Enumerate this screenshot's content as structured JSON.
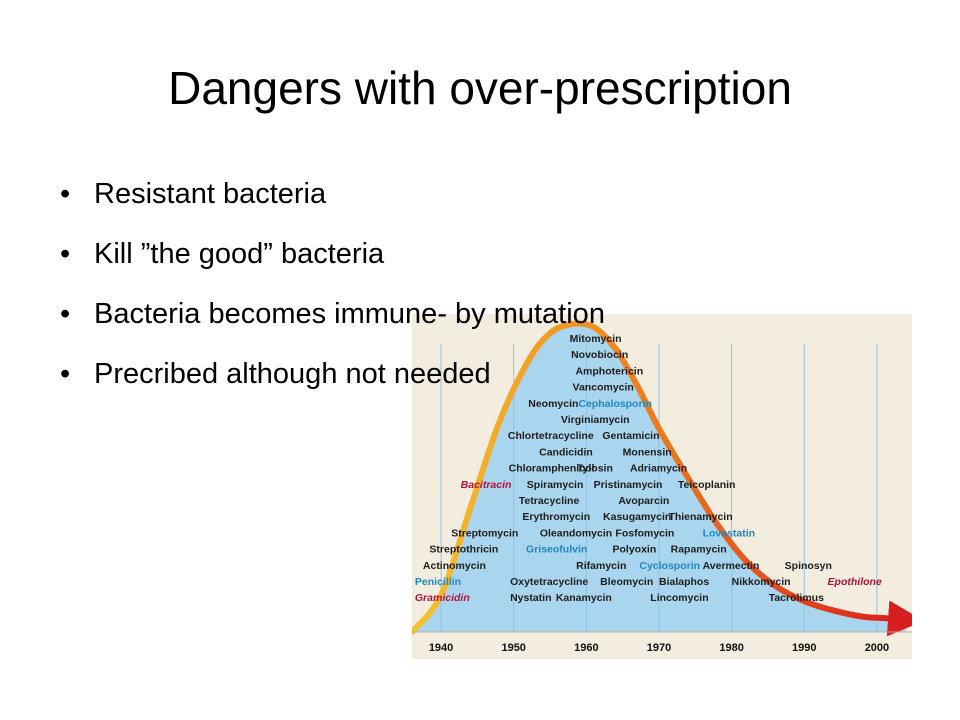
{
  "title": "Dangers with over-prescription",
  "bullets": [
    "Resistant bacteria",
    "Kill ”the good” bacteria",
    "Bacteria becomes immune- by mutation",
    "Precribed although not needed"
  ],
  "colors": {
    "background": "#f2eddf",
    "area_fill": "#a9d6ee",
    "curve_start": "#f4c430",
    "curve_mid": "#f08a1e",
    "curve_end": "#d81e1e",
    "label_default": "#1c1c1c",
    "label_blue": "#1f86c6",
    "label_red": "#b0133b"
  },
  "chart_data": {
    "type": "area",
    "xlim": [
      1936,
      2004
    ],
    "x_ticks": [
      1940,
      1950,
      1960,
      1970,
      1980,
      1990,
      2000
    ],
    "curve": {
      "x": [
        1936,
        1940,
        1944,
        1948,
        1952,
        1955,
        1958,
        1961,
        1964,
        1967,
        1970,
        1974,
        1978,
        1982,
        1986,
        1990,
        1994,
        1998,
        2001,
        2004
      ],
      "y": [
        0.0,
        0.12,
        0.4,
        0.68,
        0.88,
        0.97,
        1.0,
        0.99,
        0.92,
        0.8,
        0.66,
        0.5,
        0.35,
        0.23,
        0.15,
        0.1,
        0.07,
        0.05,
        0.045,
        0.04
      ]
    },
    "annotations": [
      {
        "text": "Mitomycin",
        "x": 1957.7,
        "row": 0,
        "style": "default"
      },
      {
        "text": "Novobiocin",
        "x": 1957.9,
        "row": 1,
        "style": "default"
      },
      {
        "text": "Amphotericin",
        "x": 1958.5,
        "row": 2,
        "style": "default"
      },
      {
        "text": "Vancomycin",
        "x": 1958.1,
        "row": 3,
        "style": "default"
      },
      {
        "text": "Neomycin",
        "x": 1952.0,
        "row": 4,
        "style": "default"
      },
      {
        "text": "Cephalosporin",
        "x": 1958.9,
        "row": 4,
        "style": "blue"
      },
      {
        "text": "Virginiamycin",
        "x": 1956.5,
        "row": 5,
        "style": "default"
      },
      {
        "text": "Chlortetracycline",
        "x": 1949.2,
        "row": 6,
        "style": "default"
      },
      {
        "text": "Gentamicin",
        "x": 1962.2,
        "row": 6,
        "style": "default"
      },
      {
        "text": "Candicidin",
        "x": 1953.5,
        "row": 7,
        "style": "default"
      },
      {
        "text": "Monensin",
        "x": 1965.0,
        "row": 7,
        "style": "default"
      },
      {
        "text": "Chloramphenicol",
        "x": 1949.3,
        "row": 8,
        "style": "default"
      },
      {
        "text": "Tylosin",
        "x": 1958.7,
        "row": 8,
        "style": "default"
      },
      {
        "text": "Adriamycin",
        "x": 1966.0,
        "row": 8,
        "style": "default"
      },
      {
        "text": "Bacitracin",
        "x": 1942.7,
        "row": 9,
        "style": "red"
      },
      {
        "text": "Spiramycin",
        "x": 1951.8,
        "row": 9,
        "style": "default"
      },
      {
        "text": "Pristinamycin",
        "x": 1961.0,
        "row": 9,
        "style": "default"
      },
      {
        "text": "Teicoplanin",
        "x": 1972.6,
        "row": 9,
        "style": "default"
      },
      {
        "text": "Tetracycline",
        "x": 1950.7,
        "row": 10,
        "style": "default"
      },
      {
        "text": "Avoparcin",
        "x": 1964.4,
        "row": 10,
        "style": "default"
      },
      {
        "text": "Erythromycin",
        "x": 1951.2,
        "row": 11,
        "style": "default"
      },
      {
        "text": "Kasugamycin",
        "x": 1962.3,
        "row": 11,
        "style": "default"
      },
      {
        "text": "Thienamycin",
        "x": 1971.3,
        "row": 11,
        "style": "default"
      },
      {
        "text": "Streptomycin",
        "x": 1941.4,
        "row": 12,
        "style": "default"
      },
      {
        "text": "Oleandomycin",
        "x": 1953.6,
        "row": 12,
        "style": "default"
      },
      {
        "text": "Fosfomycin",
        "x": 1964.0,
        "row": 12,
        "style": "default"
      },
      {
        "text": "Lovastatin",
        "x": 1976.0,
        "row": 12,
        "style": "blue"
      },
      {
        "text": "Streptothricin",
        "x": 1938.4,
        "row": 13,
        "style": "default"
      },
      {
        "text": "Griseofulvin",
        "x": 1951.7,
        "row": 13,
        "style": "blue"
      },
      {
        "text": "Polyoxin",
        "x": 1963.6,
        "row": 13,
        "style": "default"
      },
      {
        "text": "Rapamycin",
        "x": 1971.6,
        "row": 13,
        "style": "default"
      },
      {
        "text": "Actinomycin",
        "x": 1937.5,
        "row": 14,
        "style": "default"
      },
      {
        "text": "Rifamycin",
        "x": 1958.6,
        "row": 14,
        "style": "default"
      },
      {
        "text": "Cyclosporin",
        "x": 1967.3,
        "row": 14,
        "style": "blue"
      },
      {
        "text": "Avermectin",
        "x": 1976.0,
        "row": 14,
        "style": "default"
      },
      {
        "text": "Spinosyn",
        "x": 1987.3,
        "row": 14,
        "style": "default"
      },
      {
        "text": "Penicillin",
        "x": 1936.4,
        "row": 15,
        "style": "blue"
      },
      {
        "text": "Oxytetracycline",
        "x": 1949.5,
        "row": 15,
        "style": "default"
      },
      {
        "text": "Bleomycin",
        "x": 1961.9,
        "row": 15,
        "style": "default"
      },
      {
        "text": "Bialaphos",
        "x": 1970.0,
        "row": 15,
        "style": "default"
      },
      {
        "text": "Nikkomycin",
        "x": 1980.0,
        "row": 15,
        "style": "default"
      },
      {
        "text": "Epothilone",
        "x": 1993.2,
        "row": 15,
        "style": "red"
      },
      {
        "text": "Gramicidin",
        "x": 1936.4,
        "row": 16,
        "style": "red"
      },
      {
        "text": "Nystatin",
        "x": 1949.5,
        "row": 16,
        "style": "default"
      },
      {
        "text": "Kanamycin",
        "x": 1955.8,
        "row": 16,
        "style": "default"
      },
      {
        "text": "Lincomycin",
        "x": 1968.8,
        "row": 16,
        "style": "default"
      },
      {
        "text": "Tacrolimus",
        "x": 1985.1,
        "row": 16,
        "style": "default"
      }
    ]
  }
}
